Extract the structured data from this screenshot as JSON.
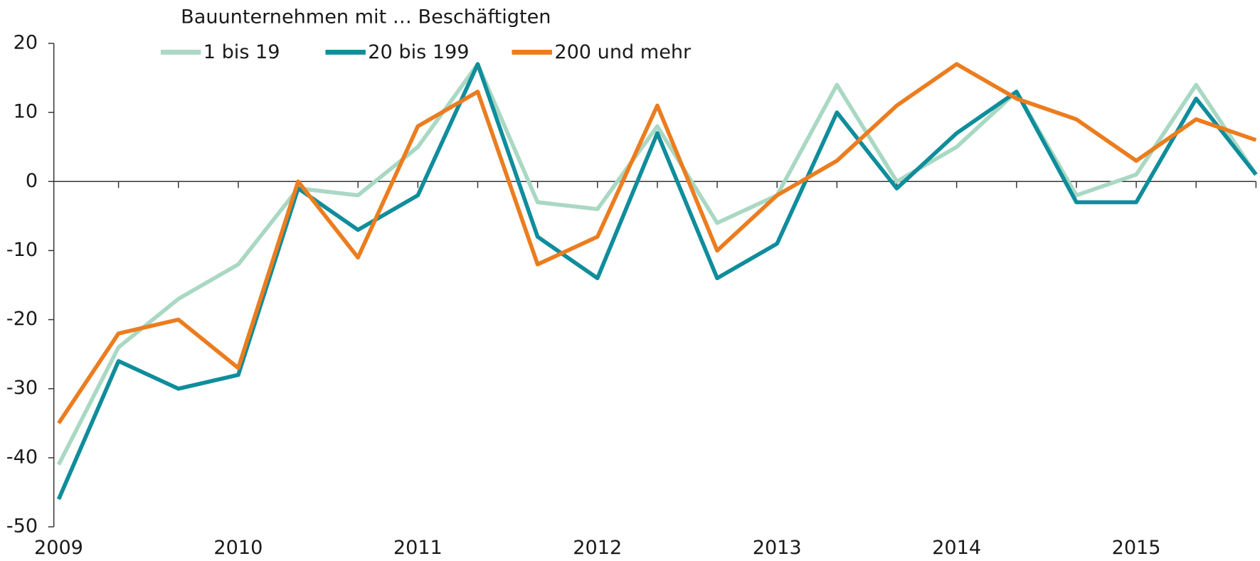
{
  "chart_data": {
    "type": "line",
    "legend_title": "Bauunternehmen mit … Beschäftigten",
    "categories": [
      "2009",
      null,
      null,
      "2010",
      null,
      null,
      "2011",
      null,
      null,
      "2012",
      null,
      null,
      "2013",
      null,
      null,
      "2014",
      null,
      null,
      "2015",
      null,
      null
    ],
    "series": [
      {
        "name": "1 bis 19",
        "color": "#a9d8c3",
        "values": [
          -41,
          -24,
          -17,
          -12,
          -1,
          -2,
          5,
          17,
          -3,
          -4,
          8,
          -6,
          -2,
          14,
          0,
          5,
          13,
          -2,
          1,
          14,
          1
        ]
      },
      {
        "name": "20 bis 199",
        "color": "#0f8d9b",
        "values": [
          -46,
          -26,
          -30,
          -28,
          -1,
          -7,
          -2,
          17,
          -8,
          -14,
          7,
          -14,
          -9,
          10,
          -1,
          7,
          13,
          -3,
          -3,
          12,
          1
        ]
      },
      {
        "name": "200 und mehr",
        "color": "#eb7d1f",
        "values": [
          -35,
          -22,
          -20,
          -27,
          0,
          -11,
          8,
          13,
          -12,
          -8,
          11,
          -10,
          -2,
          3,
          11,
          17,
          12,
          9,
          3,
          9,
          6
        ]
      }
    ],
    "ylim": [
      -50,
      20
    ],
    "yticks": [
      -50,
      -40,
      -30,
      -20,
      -10,
      0,
      10,
      20
    ]
  }
}
